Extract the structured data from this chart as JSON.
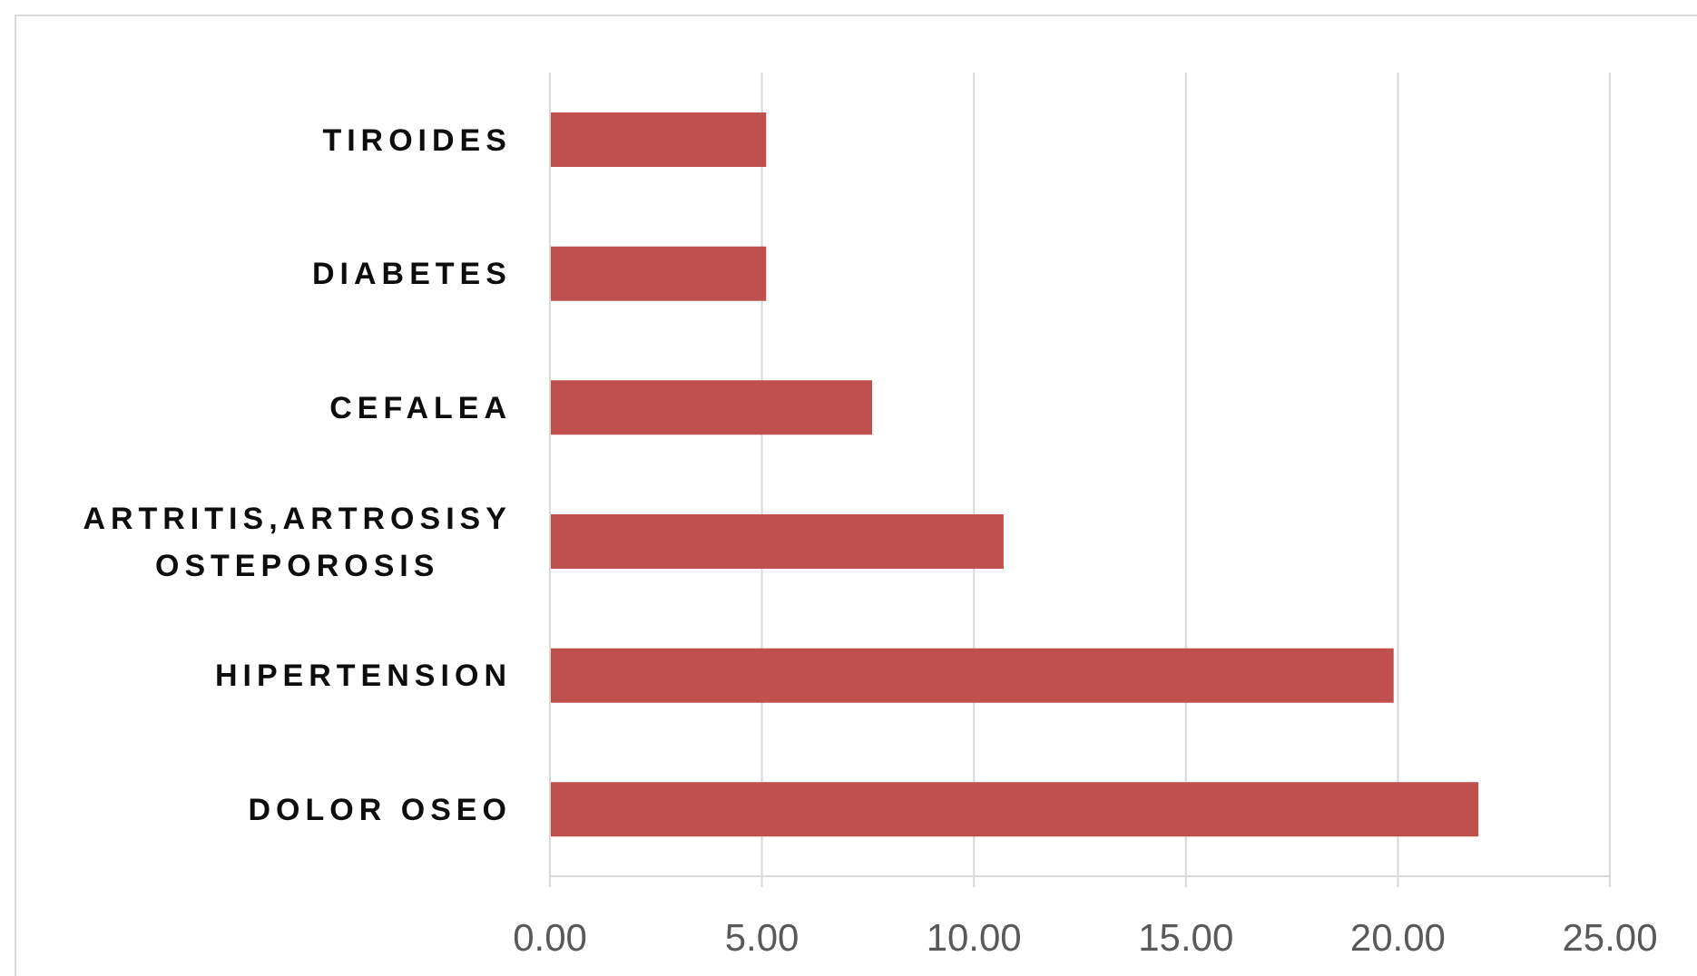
{
  "chart_data": {
    "type": "bar",
    "orientation": "horizontal",
    "categories": [
      "TIROIDES",
      "DIABETES",
      "CEFALEA",
      "ARTRITIS,ARTROSISY OSTEPOROSIS",
      "HIPERTENSION",
      "DOLOR OSEO"
    ],
    "values": [
      5.1,
      5.1,
      7.6,
      10.7,
      19.9,
      21.9
    ],
    "color": "#c0504d",
    "xlim": [
      0,
      25
    ],
    "xticks": [
      {
        "value": 0,
        "label": "0.00"
      },
      {
        "value": 5,
        "label": "5.00"
      },
      {
        "value": 10,
        "label": "10.00"
      },
      {
        "value": 15,
        "label": "15.00"
      },
      {
        "value": 20,
        "label": "20.00"
      },
      {
        "value": 25,
        "label": "25.00"
      }
    ],
    "grid": "x"
  }
}
